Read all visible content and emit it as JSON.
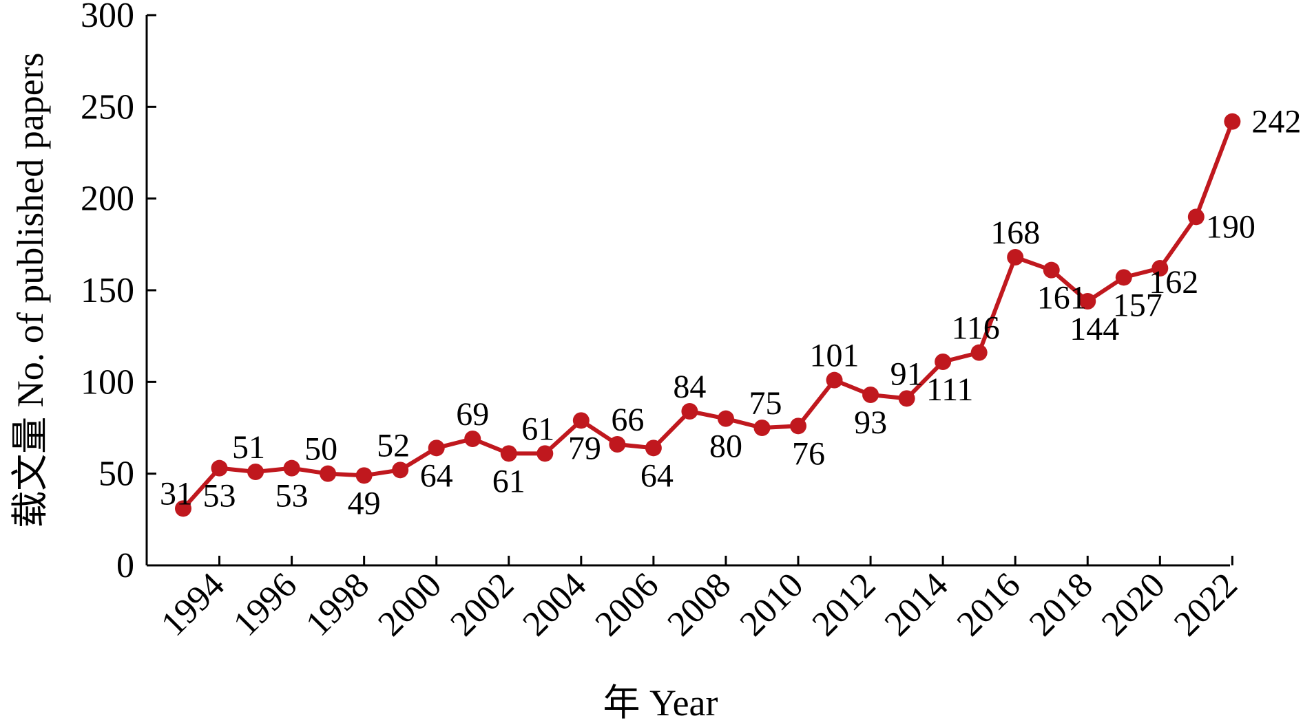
{
  "chart_data": {
    "type": "line",
    "xlabel": "年 Year",
    "ylabel": "载文量 No. of published papers",
    "ylim": [
      0,
      300
    ],
    "yticks": [
      0,
      50,
      100,
      150,
      200,
      250,
      300
    ],
    "xlim": [
      1993,
      2022
    ],
    "xticks": [
      1994,
      1996,
      1998,
      2000,
      2002,
      2004,
      2006,
      2008,
      2010,
      2012,
      2014,
      2016,
      2018,
      2020,
      2022
    ],
    "grid": false,
    "legend": "none",
    "line_color": "#c0181e",
    "series": [
      {
        "x": [
          1993,
          1994,
          1995,
          1996,
          1997,
          1998,
          1999,
          2000,
          2001,
          2002,
          2003,
          2004,
          2005,
          2006,
          2007,
          2008,
          2009,
          2010,
          2011,
          2012,
          2013,
          2014,
          2015,
          2016,
          2017,
          2018,
          2019,
          2020,
          2021,
          2022
        ],
        "values": [
          31,
          53,
          51,
          53,
          50,
          49,
          52,
          64,
          69,
          61,
          61,
          79,
          66,
          64,
          84,
          80,
          75,
          76,
          101,
          93,
          91,
          111,
          116,
          168,
          161,
          144,
          157,
          162,
          190,
          242
        ],
        "labels": [
          "31",
          "53",
          "51",
          "53",
          "50",
          "49",
          "52",
          "64",
          "69",
          "61",
          "61",
          "79",
          "66",
          "64",
          "84",
          "80",
          "75",
          "76",
          "101",
          "93",
          "91",
          "111",
          "116",
          "168",
          "161",
          "144",
          "157",
          "162",
          "190",
          "242"
        ]
      }
    ]
  }
}
